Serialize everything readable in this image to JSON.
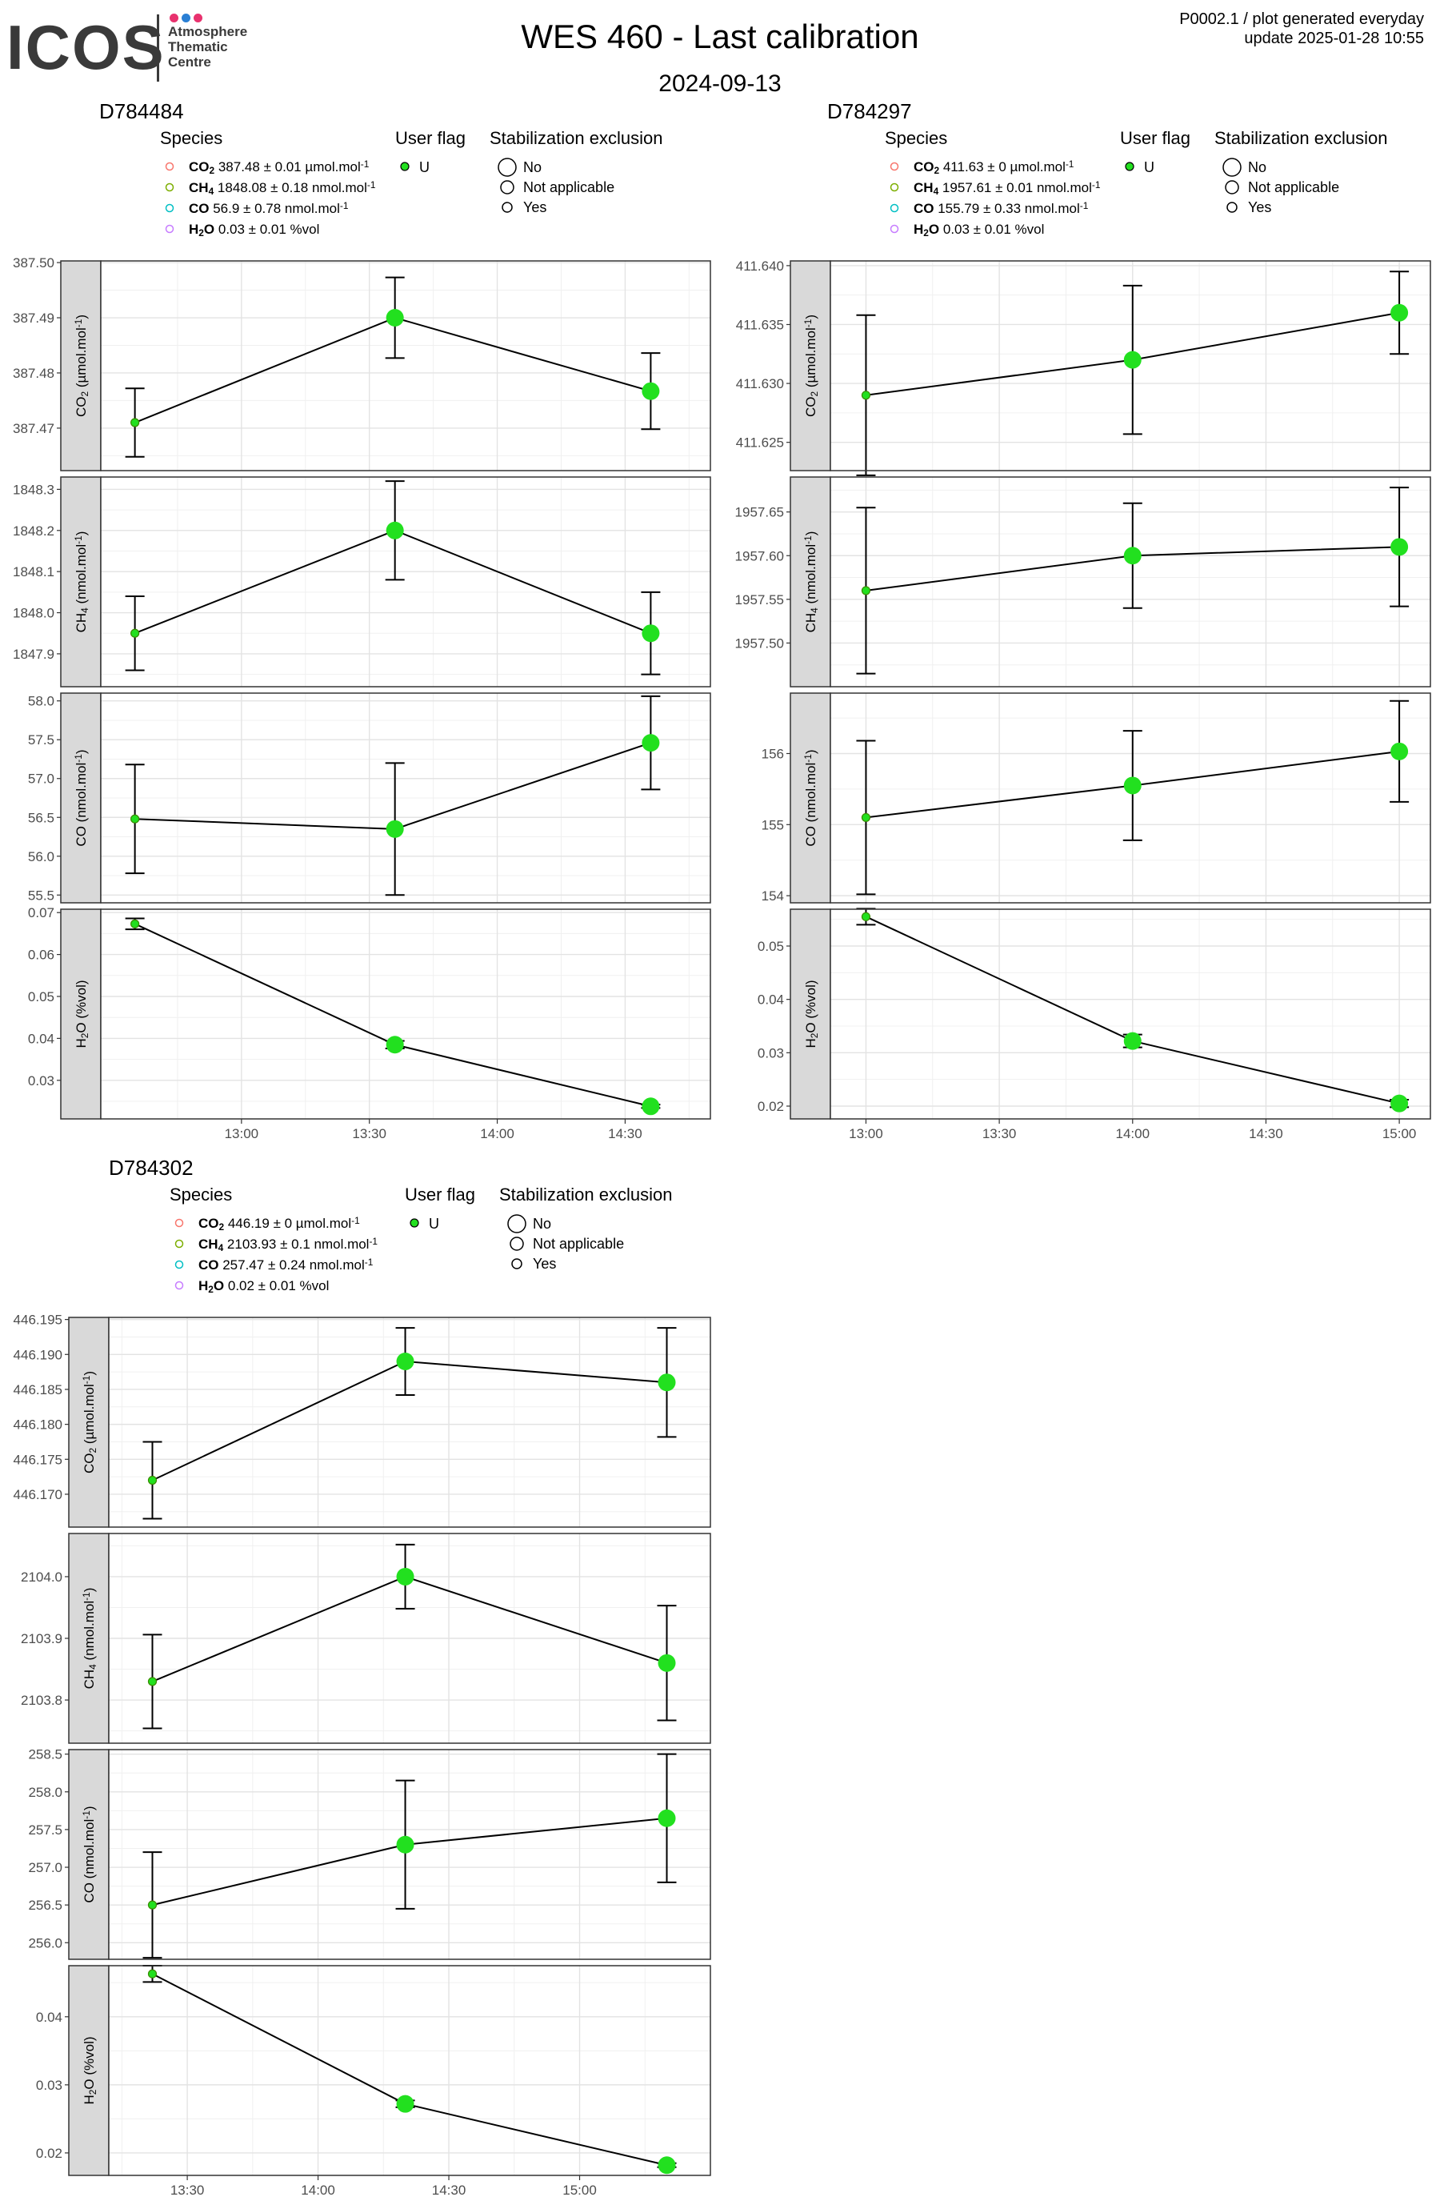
{
  "header": {
    "logo_text": "ICOS",
    "logo_dot_colors": [
      "#e8326e",
      "#2a7fd4",
      "#e8326e"
    ],
    "logo_subtitle_lines": [
      "Atmosphere",
      "Thematic",
      "Centre"
    ],
    "title": "WES 460 - Last calibration",
    "subtitle": "2024-09-13",
    "corner_line1": "P0002.1 / plot generated everyday",
    "corner_line2": "update  2025-01-28 10:55"
  },
  "legend": {
    "species_title": "Species",
    "user_flag_title": "User flag",
    "stabilization_title": "Stabilization exclusion",
    "user_flag_value": "U",
    "stabilization_values": [
      "No",
      "Not applicable",
      "Yes"
    ],
    "species_colors": [
      "#f8766d",
      "#7cae00",
      "#00bfc4",
      "#c77cff"
    ],
    "point_color": "#22e01f"
  },
  "chart_data": [
    {
      "type": "line",
      "title": "D784484",
      "legend_species": [
        {
          "species": "CO",
          "sub": "2",
          "value": "387.48 ± 0.01",
          "unit": "µmol.mol",
          "sup": "-1"
        },
        {
          "species": "CH",
          "sub": "4",
          "value": "1848.08 ± 0.18",
          "unit": "nmol.mol",
          "sup": "-1"
        },
        {
          "species": "CO",
          "sub": "",
          "value": "56.9 ± 0.78",
          "unit": "nmol.mol",
          "sup": "-1"
        },
        {
          "species": "H",
          "sub": "2",
          "tail": "O",
          "value": "0.03 ± 0.01",
          "unit": "%vol",
          "sup": ""
        }
      ],
      "x": [
        "12:35",
        "13:36",
        "14:36"
      ],
      "xlim": [
        "12:27",
        "14:50"
      ],
      "x_ticks": [
        "13:00",
        "13:30",
        "14:00",
        "14:30"
      ],
      "point_sizes": [
        "small",
        "large",
        "large"
      ],
      "panels": [
        {
          "species": "CO",
          "sub": "2",
          "unit": "µmol.mol",
          "sup": "-1",
          "y": [
            387.471,
            387.49,
            387.4767
          ],
          "err": [
            0.0062,
            0.0073,
            0.0069
          ],
          "ylim": [
            387.4623,
            387.5003
          ],
          "y_ticks": [
            "387.47",
            "387.48",
            "387.49",
            "387.50"
          ]
        },
        {
          "species": "CH",
          "sub": "4",
          "unit": "nmol.mol",
          "sup": "-1",
          "y": [
            1847.95,
            1848.2,
            1847.95
          ],
          "err": [
            0.09,
            0.12,
            0.1
          ],
          "ylim": [
            1847.82,
            1848.33
          ],
          "y_ticks": [
            "1847.9",
            "1848.0",
            "1848.1",
            "1848.2",
            "1848.3"
          ]
        },
        {
          "species": "CO",
          "sub": "",
          "unit": "nmol.mol",
          "sup": "-1",
          "y": [
            56.48,
            56.35,
            57.46
          ],
          "err": [
            0.7,
            0.85,
            0.6
          ],
          "ylim": [
            55.4,
            58.1
          ],
          "y_ticks": [
            "55.5",
            "56.0",
            "56.5",
            "57.0",
            "57.5",
            "58.0"
          ]
        },
        {
          "species": "H",
          "sub": "2",
          "tail": "O",
          "unit": "%vol",
          "sup": "",
          "y": [
            0.0673,
            0.0385,
            0.0238
          ],
          "err": [
            0.0013,
            0.0009,
            0.0004
          ],
          "ylim": [
            0.0208,
            0.0708
          ],
          "y_ticks": [
            "0.03",
            "0.04",
            "0.05",
            "0.06",
            "0.07"
          ]
        }
      ]
    },
    {
      "type": "line",
      "title": "D784297",
      "legend_species": [
        {
          "species": "CO",
          "sub": "2",
          "value": "411.63 ± 0",
          "unit": "µmol.mol",
          "sup": "-1"
        },
        {
          "species": "CH",
          "sub": "4",
          "value": "1957.61 ± 0.01",
          "unit": "nmol.mol",
          "sup": "-1"
        },
        {
          "species": "CO",
          "sub": "",
          "value": "155.79 ± 0.33",
          "unit": "nmol.mol",
          "sup": "-1"
        },
        {
          "species": "H",
          "sub": "2",
          "tail": "O",
          "value": "0.03 ± 0.01",
          "unit": "%vol",
          "sup": ""
        }
      ],
      "x": [
        "13:00",
        "14:00",
        "15:00"
      ],
      "xlim": [
        "12:52",
        "15:07"
      ],
      "x_ticks": [
        "13:00",
        "13:30",
        "14:00",
        "14:30",
        "15:00"
      ],
      "point_sizes": [
        "small",
        "large",
        "large"
      ],
      "panels": [
        {
          "species": "CO",
          "sub": "2",
          "unit": "µmol.mol",
          "sup": "-1",
          "y": [
            411.629,
            411.632,
            411.636
          ],
          "err": [
            0.0068,
            0.0063,
            0.0035
          ],
          "ylim": [
            411.6226,
            411.6404
          ],
          "y_ticks": [
            "411.625",
            "411.630",
            "411.635",
            "411.640"
          ]
        },
        {
          "species": "CH",
          "sub": "4",
          "unit": "nmol.mol",
          "sup": "-1",
          "y": [
            1957.56,
            1957.6,
            1957.61
          ],
          "err": [
            0.095,
            0.06,
            0.068
          ],
          "ylim": [
            1957.45,
            1957.69
          ],
          "y_ticks": [
            "1957.50",
            "1957.55",
            "1957.60",
            "1957.65"
          ]
        },
        {
          "species": "CO",
          "sub": "",
          "unit": "nmol.mol",
          "sup": "-1",
          "y": [
            155.1,
            155.55,
            156.03
          ],
          "err": [
            1.08,
            0.77,
            0.71
          ],
          "ylim": [
            153.9,
            156.85
          ],
          "y_ticks": [
            "154",
            "155",
            "156"
          ]
        },
        {
          "species": "H",
          "sub": "2",
          "tail": "O",
          "unit": "%vol",
          "sup": "",
          "y": [
            0.0555,
            0.0322,
            0.0205
          ],
          "err": [
            0.0015,
            0.0012,
            0.0007
          ],
          "ylim": [
            0.0176,
            0.0569
          ],
          "y_ticks": [
            "0.02",
            "0.03",
            "0.04",
            "0.05"
          ]
        }
      ]
    },
    {
      "type": "line",
      "title": "D784302",
      "legend_species": [
        {
          "species": "CO",
          "sub": "2",
          "value": "446.19 ± 0",
          "unit": "µmol.mol",
          "sup": "-1"
        },
        {
          "species": "CH",
          "sub": "4",
          "value": "2103.93 ± 0.1",
          "unit": "nmol.mol",
          "sup": "-1"
        },
        {
          "species": "CO",
          "sub": "",
          "value": "257.47 ± 0.24",
          "unit": "nmol.mol",
          "sup": "-1"
        },
        {
          "species": "H",
          "sub": "2",
          "tail": "O",
          "value": "0.02 ± 0.01",
          "unit": "%vol",
          "sup": ""
        }
      ],
      "x": [
        "13:22",
        "14:20",
        "15:20"
      ],
      "xlim": [
        "13:12",
        "15:30"
      ],
      "x_ticks": [
        "13:30",
        "14:00",
        "14:30",
        "15:00"
      ],
      "point_sizes": [
        "small",
        "large",
        "large"
      ],
      "panels": [
        {
          "species": "CO",
          "sub": "2",
          "unit": "µmol.mol",
          "sup": "-1",
          "y": [
            446.172,
            446.189,
            446.186
          ],
          "err": [
            0.0055,
            0.0048,
            0.0078
          ],
          "ylim": [
            446.1653,
            446.1953
          ],
          "y_ticks": [
            "446.170",
            "446.175",
            "446.180",
            "446.185",
            "446.190",
            "446.195"
          ]
        },
        {
          "species": "CH",
          "sub": "4",
          "unit": "nmol.mol",
          "sup": "-1",
          "y": [
            2103.83,
            2104.0,
            2103.86
          ],
          "err": [
            0.076,
            0.052,
            0.093
          ],
          "ylim": [
            2103.73,
            2104.07
          ],
          "y_ticks": [
            "2103.8",
            "2103.9",
            "2104.0"
          ]
        },
        {
          "species": "CO",
          "sub": "",
          "unit": "nmol.mol",
          "sup": "-1",
          "y": [
            256.5,
            257.3,
            257.65
          ],
          "err": [
            0.7,
            0.85,
            0.85
          ],
          "ylim": [
            255.78,
            258.56
          ],
          "y_ticks": [
            "256.0",
            "256.5",
            "257.0",
            "257.5",
            "258.0",
            "258.5"
          ]
        },
        {
          "species": "H",
          "sub": "2",
          "tail": "O",
          "unit": "%vol",
          "sup": "",
          "y": [
            0.0463,
            0.0272,
            0.0182
          ],
          "err": [
            0.0012,
            0.0005,
            0.0003
          ],
          "ylim": [
            0.0167,
            0.0475
          ],
          "y_ticks": [
            "0.02",
            "0.03",
            "0.04"
          ]
        }
      ]
    }
  ]
}
